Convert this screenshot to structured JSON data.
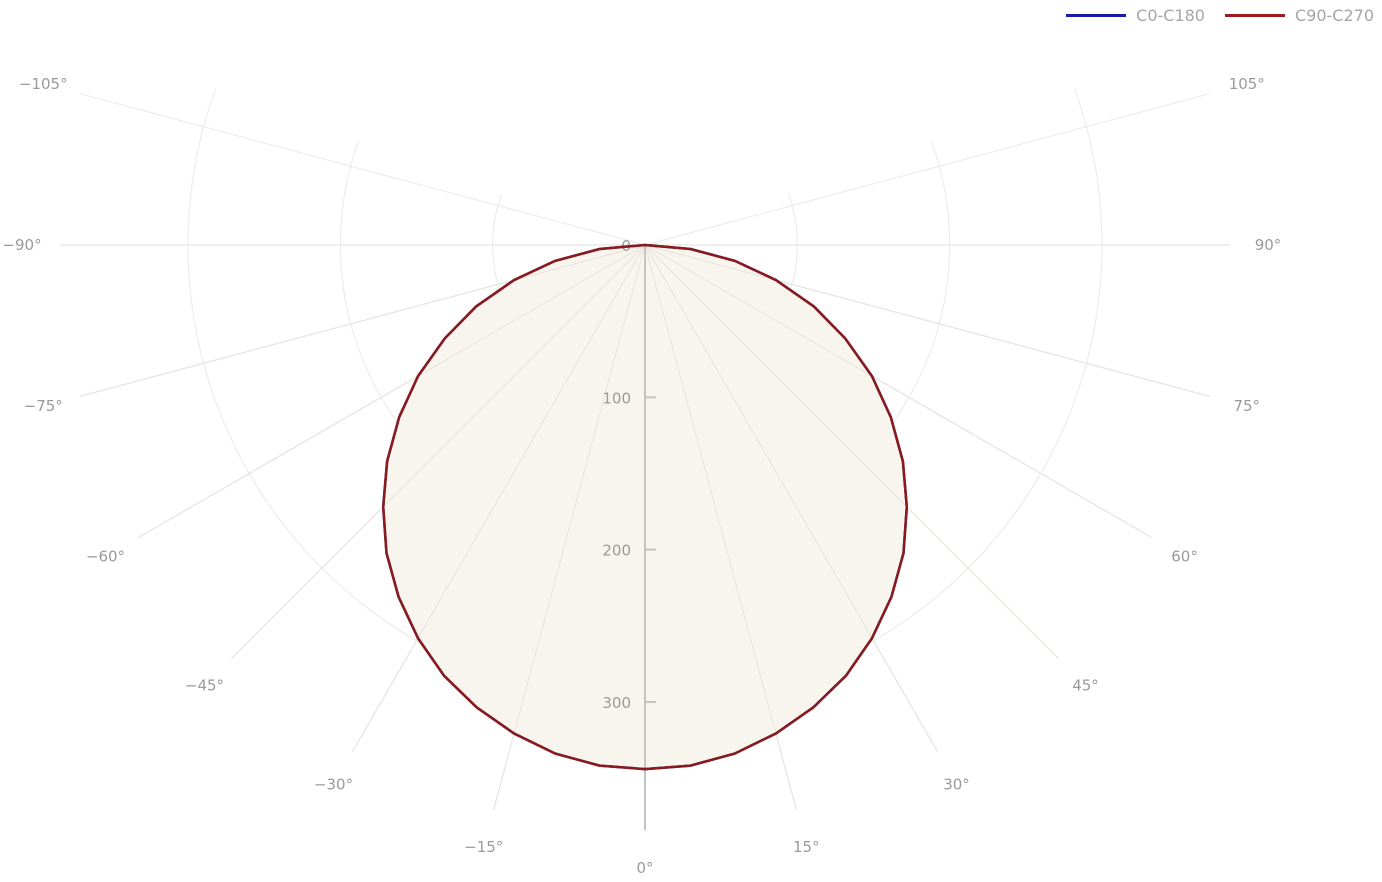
{
  "chart_data": {
    "type": "polar-line",
    "angular_unit": "degrees",
    "angular_ticks": [
      -105,
      -90,
      -75,
      -60,
      -45,
      -30,
      -15,
      0,
      15,
      30,
      45,
      60,
      75,
      90,
      105
    ],
    "angular_tick_labels": [
      "−105°",
      "−90°",
      "−75°",
      "−60°",
      "−45°",
      "−30°",
      "−15°",
      "0°",
      "15°",
      "30°",
      "45°",
      "60°",
      "75°",
      "90°",
      "105°"
    ],
    "radial_ticks": [
      0,
      100,
      200,
      300
    ],
    "radial_tick_labels": [
      "0",
      "100",
      "200",
      "300"
    ],
    "radial_range": [
      0,
      384
    ],
    "angular_range": [
      -110,
      110
    ],
    "grid": true,
    "legend_position": "top-right",
    "angles": [
      -90,
      -85,
      -80,
      -75,
      -70,
      -65,
      -60,
      -55,
      -50,
      -45,
      -40,
      -35,
      -30,
      -25,
      -20,
      -15,
      -10,
      -5,
      0,
      5,
      10,
      15,
      20,
      25,
      30,
      35,
      40,
      45,
      50,
      55,
      60,
      65,
      70,
      75,
      80,
      85,
      90
    ],
    "series": [
      {
        "name": "C0-C180",
        "color": "#1a1aa6",
        "values": [
          0,
          30,
          60,
          89,
          118,
          145,
          172,
          197,
          221,
          243,
          264,
          282,
          298,
          312,
          323,
          332,
          339,
          343,
          344,
          343,
          339,
          332,
          323,
          312,
          298,
          282,
          264,
          243,
          221,
          197,
          172,
          145,
          118,
          89,
          60,
          30,
          0
        ]
      },
      {
        "name": "C90-C270",
        "color": "#a01c1c",
        "values": [
          0,
          30,
          60,
          89,
          118,
          145,
          172,
          197,
          221,
          243,
          264,
          282,
          298,
          312,
          323,
          332,
          339,
          343,
          344,
          343,
          339,
          332,
          323,
          312,
          298,
          282,
          264,
          243,
          221,
          197,
          172,
          145,
          118,
          89,
          60,
          30,
          0
        ]
      }
    ],
    "fill_color": "#f8f5ee",
    "line_color": "#8b1a1a"
  }
}
